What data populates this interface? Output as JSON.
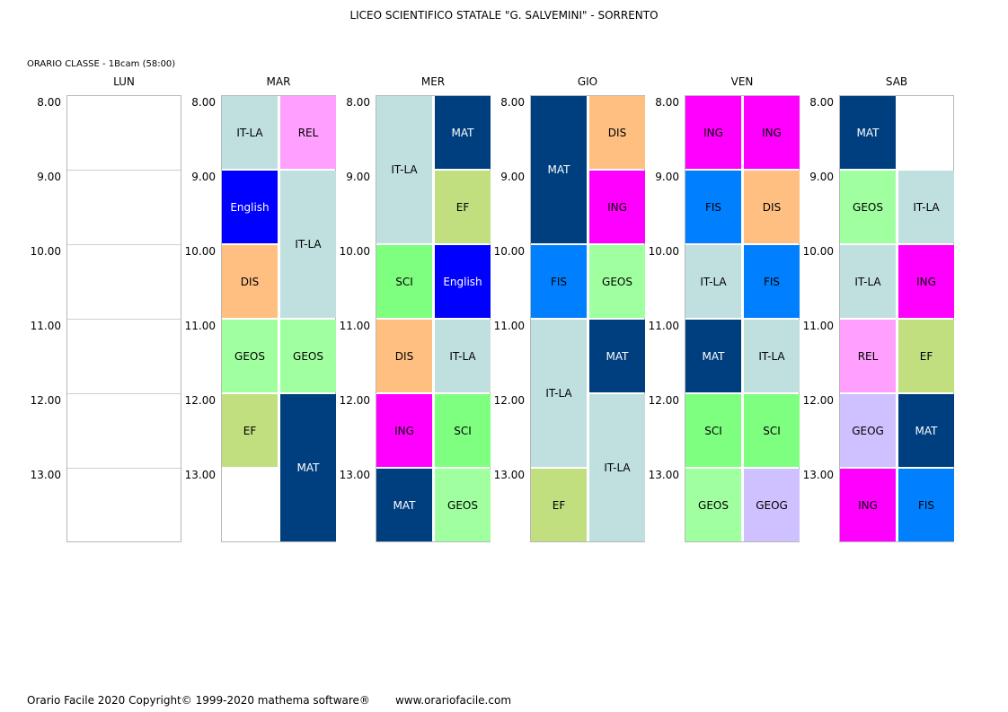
{
  "title": "LICEO SCIENTIFICO STATALE \"G. SALVEMINI\" - SORRENTO",
  "class_label": "ORARIO CLASSE  -  1Bcam (58:00)",
  "hours": [
    "8.00",
    "9.00",
    "10.00",
    "11.00",
    "12.00",
    "13.00"
  ],
  "subject_colors": {
    "IT-LA": {
      "bg": "#c0e0df",
      "fg": "#000000"
    },
    "REL": {
      "bg": "#ff9ffe",
      "fg": "#000000"
    },
    "English": {
      "bg": "#0000ff",
      "fg": "#ffffff"
    },
    "DIS": {
      "bg": "#ffbf80",
      "fg": "#000000"
    },
    "GEOS": {
      "bg": "#a0ff9f",
      "fg": "#000000"
    },
    "EF": {
      "bg": "#c1df7f",
      "fg": "#000000"
    },
    "MAT": {
      "bg": "#003f7f",
      "fg": "#ffffff"
    },
    "SCI": {
      "bg": "#7fff80",
      "fg": "#000000"
    },
    "ING": {
      "bg": "#ff00ff",
      "fg": "#000000"
    },
    "FIS": {
      "bg": "#0080ff",
      "fg": "#000000"
    },
    "GEOG": {
      "bg": "#cfc0ff",
      "fg": "#000000"
    }
  },
  "days": [
    {
      "name": "LUN",
      "lessons": []
    },
    {
      "name": "MAR",
      "lessons": [
        {
          "subject": "IT-LA",
          "col": 0,
          "start": 0,
          "span": 1
        },
        {
          "subject": "REL",
          "col": 1,
          "start": 0,
          "span": 1
        },
        {
          "subject": "English",
          "col": 0,
          "start": 1,
          "span": 1
        },
        {
          "subject": "IT-LA",
          "col": 1,
          "start": 1,
          "span": 2
        },
        {
          "subject": "DIS",
          "col": 0,
          "start": 2,
          "span": 1
        },
        {
          "subject": "GEOS",
          "col": 0,
          "start": 3,
          "span": 1
        },
        {
          "subject": "GEOS",
          "col": 1,
          "start": 3,
          "span": 1
        },
        {
          "subject": "EF",
          "col": 0,
          "start": 4,
          "span": 1
        },
        {
          "subject": "MAT",
          "col": 1,
          "start": 4,
          "span": 2
        }
      ]
    },
    {
      "name": "MER",
      "lessons": [
        {
          "subject": "IT-LA",
          "col": 0,
          "start": 0,
          "span": 2
        },
        {
          "subject": "MAT",
          "col": 1,
          "start": 0,
          "span": 1
        },
        {
          "subject": "EF",
          "col": 1,
          "start": 1,
          "span": 1
        },
        {
          "subject": "SCI",
          "col": 0,
          "start": 2,
          "span": 1
        },
        {
          "subject": "English",
          "col": 1,
          "start": 2,
          "span": 1
        },
        {
          "subject": "DIS",
          "col": 0,
          "start": 3,
          "span": 1
        },
        {
          "subject": "IT-LA",
          "col": 1,
          "start": 3,
          "span": 1
        },
        {
          "subject": "ING",
          "col": 0,
          "start": 4,
          "span": 1
        },
        {
          "subject": "SCI",
          "col": 1,
          "start": 4,
          "span": 1
        },
        {
          "subject": "MAT",
          "col": 0,
          "start": 5,
          "span": 1
        },
        {
          "subject": "GEOS",
          "col": 1,
          "start": 5,
          "span": 1
        }
      ]
    },
    {
      "name": "GIO",
      "lessons": [
        {
          "subject": "MAT",
          "col": 0,
          "start": 0,
          "span": 2
        },
        {
          "subject": "DIS",
          "col": 1,
          "start": 0,
          "span": 1
        },
        {
          "subject": "ING",
          "col": 1,
          "start": 1,
          "span": 1
        },
        {
          "subject": "FIS",
          "col": 0,
          "start": 2,
          "span": 1
        },
        {
          "subject": "GEOS",
          "col": 1,
          "start": 2,
          "span": 1
        },
        {
          "subject": "IT-LA",
          "col": 0,
          "start": 3,
          "span": 2
        },
        {
          "subject": "MAT",
          "col": 1,
          "start": 3,
          "span": 1
        },
        {
          "subject": "IT-LA",
          "col": 1,
          "start": 4,
          "span": 2
        },
        {
          "subject": "EF",
          "col": 0,
          "start": 5,
          "span": 1
        }
      ]
    },
    {
      "name": "VEN",
      "lessons": [
        {
          "subject": "ING",
          "col": 0,
          "start": 0,
          "span": 1
        },
        {
          "subject": "ING",
          "col": 1,
          "start": 0,
          "span": 1
        },
        {
          "subject": "FIS",
          "col": 0,
          "start": 1,
          "span": 1
        },
        {
          "subject": "DIS",
          "col": 1,
          "start": 1,
          "span": 1
        },
        {
          "subject": "IT-LA",
          "col": 0,
          "start": 2,
          "span": 1
        },
        {
          "subject": "FIS",
          "col": 1,
          "start": 2,
          "span": 1
        },
        {
          "subject": "MAT",
          "col": 0,
          "start": 3,
          "span": 1
        },
        {
          "subject": "IT-LA",
          "col": 1,
          "start": 3,
          "span": 1
        },
        {
          "subject": "SCI",
          "col": 0,
          "start": 4,
          "span": 1
        },
        {
          "subject": "SCI",
          "col": 1,
          "start": 4,
          "span": 1
        },
        {
          "subject": "GEOS",
          "col": 0,
          "start": 5,
          "span": 1
        },
        {
          "subject": "GEOG",
          "col": 1,
          "start": 5,
          "span": 1
        }
      ]
    },
    {
      "name": "SAB",
      "lessons": [
        {
          "subject": "MAT",
          "col": 0,
          "start": 0,
          "span": 1
        },
        {
          "subject": "GEOS",
          "col": 0,
          "start": 1,
          "span": 1
        },
        {
          "subject": "IT-LA",
          "col": 1,
          "start": 1,
          "span": 1
        },
        {
          "subject": "IT-LA",
          "col": 0,
          "start": 2,
          "span": 1
        },
        {
          "subject": "ING",
          "col": 1,
          "start": 2,
          "span": 1
        },
        {
          "subject": "REL",
          "col": 0,
          "start": 3,
          "span": 1
        },
        {
          "subject": "EF",
          "col": 1,
          "start": 3,
          "span": 1
        },
        {
          "subject": "GEOG",
          "col": 0,
          "start": 4,
          "span": 1
        },
        {
          "subject": "MAT",
          "col": 1,
          "start": 4,
          "span": 1
        },
        {
          "subject": "ING",
          "col": 0,
          "start": 5,
          "span": 1
        },
        {
          "subject": "FIS",
          "col": 1,
          "start": 5,
          "span": 1
        }
      ]
    }
  ],
  "footer": {
    "copyright": "Orario Facile 2020  Copyright© 1999-2020 mathema software®",
    "url": "www.orariofacile.com"
  }
}
